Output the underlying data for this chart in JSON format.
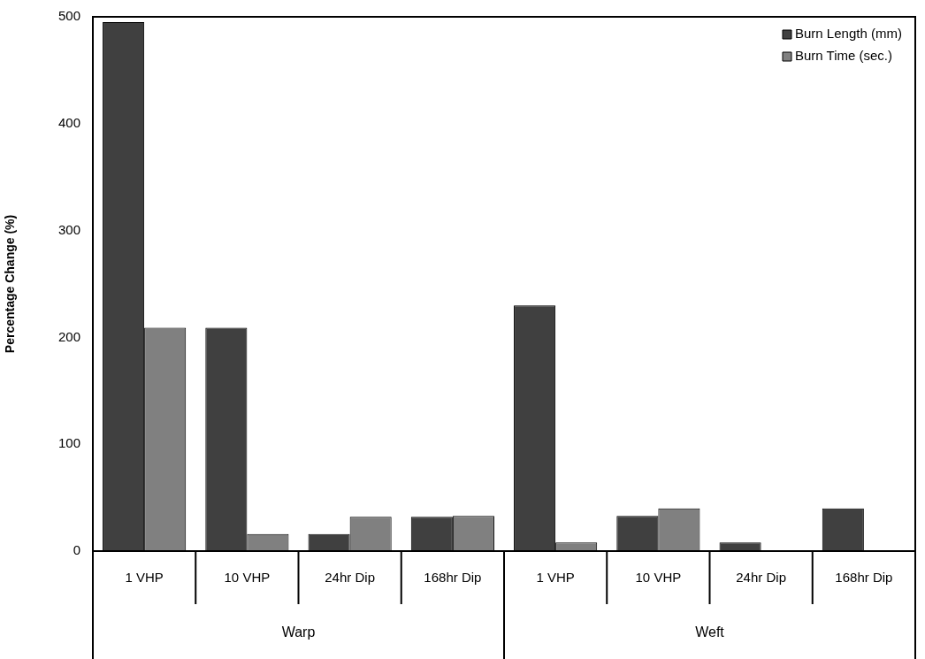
{
  "chart_data": {
    "type": "bar",
    "ylabel": "Percentage Change (%)",
    "categories": [
      "1 VHP",
      "10 VHP",
      "24hr Dip",
      "168hr Dip",
      "1 VHP",
      "10 VHP",
      "24hr Dip",
      "168hr Dip"
    ],
    "series": [
      {
        "name": "Burn Length (mm)",
        "color": "#404040",
        "values": [
          495,
          209,
          16,
          32,
          230,
          33,
          8,
          40
        ]
      },
      {
        "name": "Burn Time (sec.)",
        "color": "#808080",
        "values": [
          209,
          16,
          32,
          33,
          8,
          40,
          null,
          null
        ]
      }
    ],
    "ylim": [
      0,
      500
    ],
    "yticks": [
      0,
      100,
      200,
      300,
      400,
      500
    ],
    "grid": false,
    "legend": "top right",
    "annotations": [
      "Warp",
      "Weft"
    ]
  }
}
